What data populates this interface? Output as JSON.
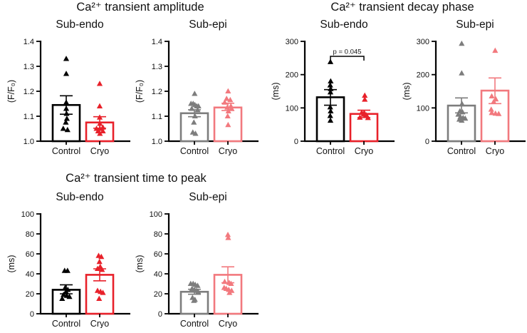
{
  "figure": {
    "groups": [
      {
        "title": "Ca²⁺ transient amplitude"
      },
      {
        "title": "Ca²⁺ transient decay phase"
      },
      {
        "title": "Ca²⁺ transient time to peak"
      }
    ]
  },
  "colors": {
    "control_sub_endo": "#000000",
    "cryo_sub_endo": "#e8212a",
    "control_sub_epi": "#7d7d7d",
    "cryo_sub_epi": "#f2797e",
    "axis": "#000000",
    "background": "#ffffff"
  },
  "chart_data": [
    {
      "id": "amplitude-sub-endo",
      "type": "bar",
      "group": "Ca²⁺ transient amplitude",
      "subtitle": "Sub-endo",
      "ylabel": "(F/F₀)",
      "ylim": [
        1.0,
        1.4
      ],
      "yticks": [
        {
          "value": 1.0,
          "label": "1.0"
        },
        {
          "value": 1.1,
          "label": "1.1"
        },
        {
          "value": 1.2,
          "label": "1.2"
        },
        {
          "value": 1.3,
          "label": "1.3"
        },
        {
          "value": 1.4,
          "label": "1.4"
        }
      ],
      "categories": [
        "Control",
        "Cryo"
      ],
      "series": [
        {
          "name": "Control",
          "color": "#000000",
          "mean": 1.145,
          "err_low": 1.108,
          "err_high": 1.182,
          "points": [
            1.33,
            1.27,
            1.155,
            1.13,
            1.11,
            1.09,
            1.075,
            1.05,
            1.045
          ],
          "jitter": [
            0,
            0,
            0,
            0,
            0.03,
            0.06,
            -0.04,
            -0.28,
            0.12
          ]
        },
        {
          "name": "Cryo",
          "color": "#e8212a",
          "mean": 1.075,
          "err_low": 1.052,
          "err_high": 1.098,
          "points": [
            1.23,
            1.14,
            1.095,
            1.07,
            1.055,
            1.05,
            1.05,
            1.04,
            1.04,
            1.03
          ],
          "jitter": [
            0,
            0,
            0,
            0.02,
            0.3,
            -0.3,
            0.02,
            -0.15,
            0.3,
            0.02
          ]
        }
      ]
    },
    {
      "id": "amplitude-sub-epi",
      "type": "bar",
      "group": "Ca²⁺ transient amplitude",
      "subtitle": "Sub-epi",
      "ylabel": "(F/F₀)",
      "ylim": [
        1.0,
        1.4
      ],
      "yticks": [
        {
          "value": 1.0,
          "label": "1.0"
        },
        {
          "value": 1.1,
          "label": "1.1"
        },
        {
          "value": 1.2,
          "label": "1.2"
        },
        {
          "value": 1.3,
          "label": "1.3"
        },
        {
          "value": 1.4,
          "label": "1.4"
        }
      ],
      "categories": [
        "Control",
        "Cryo"
      ],
      "series": [
        {
          "name": "Control",
          "color": "#7d7d7d",
          "mean": 1.112,
          "err_low": 1.098,
          "err_high": 1.126,
          "points": [
            1.19,
            1.15,
            1.15,
            1.145,
            1.14,
            1.14,
            1.13,
            1.125,
            1.1,
            1.075,
            1.035,
            1.03
          ],
          "jitter": [
            0.02,
            -0.32,
            -0.12,
            0.05,
            0.22,
            0.38,
            -0.25,
            0.3,
            0.05,
            -0.05,
            -0.15,
            0.1
          ]
        },
        {
          "name": "Cryo",
          "color": "#f2797e",
          "mean": 1.135,
          "err_low": 1.123,
          "err_high": 1.152,
          "points": [
            1.2,
            1.17,
            1.165,
            1.155,
            1.14,
            1.135,
            1.13,
            1.12,
            1.1,
            1.065
          ],
          "jitter": [
            0.02,
            -0.12,
            0.22,
            -0.3,
            0.28,
            -0.05,
            0.35,
            0.05,
            -0.02,
            0.02
          ]
        }
      ]
    },
    {
      "id": "decay-sub-endo",
      "type": "bar",
      "group": "Ca²⁺ transient decay phase",
      "subtitle": "Sub-endo",
      "ylabel": "(ms)",
      "ylim": [
        0,
        300
      ],
      "yticks": [
        {
          "value": 0,
          "label": "0"
        },
        {
          "value": 100,
          "label": "100"
        },
        {
          "value": 200,
          "label": "200"
        },
        {
          "value": 300,
          "label": "300"
        }
      ],
      "categories": [
        "Control",
        "Cryo"
      ],
      "significance": {
        "label": "p = 0.045",
        "y": 255
      },
      "series": [
        {
          "name": "Control",
          "color": "#000000",
          "mean": 132,
          "err_low": 108,
          "err_high": 155,
          "points": [
            238,
            180,
            168,
            157,
            147,
            102,
            90,
            76,
            62
          ],
          "jitter": [
            0,
            0.02,
            -0.02,
            0.02,
            0,
            -0.02,
            0.02,
            -0.02,
            0
          ]
        },
        {
          "name": "Cryo",
          "color": "#e8212a",
          "mean": 82,
          "err_low": 71,
          "err_high": 93,
          "points": [
            137,
            125,
            86,
            84,
            80,
            78,
            71,
            70
          ],
          "jitter": [
            0.08,
            0.08,
            -0.2,
            0.05,
            -0.05,
            0.22,
            -0.38,
            0.38
          ]
        }
      ]
    },
    {
      "id": "decay-sub-epi",
      "type": "bar",
      "group": "Ca²⁺ transient decay phase",
      "subtitle": "Sub-epi",
      "ylabel": "(ms)",
      "ylim": [
        0,
        300
      ],
      "yticks": [
        {
          "value": 0,
          "label": "0"
        },
        {
          "value": 100,
          "label": "100"
        },
        {
          "value": 200,
          "label": "200"
        },
        {
          "value": 300,
          "label": "300"
        }
      ],
      "categories": [
        "Control",
        "Cryo"
      ],
      "series": [
        {
          "name": "Control",
          "color": "#7d7d7d",
          "mean": 107,
          "err_low": 85,
          "err_high": 130,
          "points": [
            293,
            204,
            112,
            90,
            87,
            80,
            73,
            70,
            68,
            65,
            62
          ],
          "jitter": [
            0.02,
            0.02,
            0.05,
            -0.15,
            0.1,
            -0.3,
            -0.1,
            0.15,
            0.35,
            -0.2,
            0.02
          ]
        },
        {
          "name": "Cryo",
          "color": "#f2797e",
          "mean": 152,
          "err_low": 113,
          "err_high": 190,
          "points": [
            272,
            135,
            126,
            118,
            95,
            85,
            83,
            82
          ],
          "jitter": [
            0.02,
            -0.3,
            0.08,
            -0.12,
            -0.35,
            -0.3,
            0.05,
            0.35
          ]
        }
      ]
    },
    {
      "id": "time-to-peak-sub-endo",
      "type": "bar",
      "group": "Ca²⁺ transient time to peak",
      "subtitle": "Sub-endo",
      "ylabel": "(ms)",
      "ylim": [
        0,
        100
      ],
      "yticks": [
        {
          "value": 0,
          "label": "0"
        },
        {
          "value": 20,
          "label": "20"
        },
        {
          "value": 40,
          "label": "40"
        },
        {
          "value": 60,
          "label": "60"
        },
        {
          "value": 80,
          "label": "80"
        },
        {
          "value": 100,
          "label": "100"
        }
      ],
      "categories": [
        "Control",
        "Cryo"
      ],
      "series": [
        {
          "name": "Control",
          "color": "#000000",
          "mean": 24,
          "err_low": 20,
          "err_high": 29,
          "points": [
            43,
            43,
            26,
            24,
            22,
            19,
            18,
            17,
            15
          ],
          "jitter": [
            -0.15,
            0.12,
            -0.1,
            0.15,
            -0.02,
            -0.25,
            0.05,
            0.3,
            -0.38
          ]
        },
        {
          "name": "Cryo",
          "color": "#e8212a",
          "mean": 39,
          "err_low": 33,
          "err_high": 45,
          "points": [
            58,
            57,
            52,
            47,
            45,
            44,
            23,
            22,
            21,
            15
          ],
          "jitter": [
            -0.1,
            0.15,
            -0.02,
            0.05,
            -0.2,
            0.22,
            -0.2,
            0.08,
            0.3,
            -0.05
          ]
        }
      ]
    },
    {
      "id": "time-to-peak-sub-epi",
      "type": "bar",
      "group": "Ca²⁺ transient time to peak",
      "subtitle": "Sub-epi",
      "ylabel": "(ms)",
      "ylim": [
        0,
        100
      ],
      "yticks": [
        {
          "value": 0,
          "label": "0"
        },
        {
          "value": 20,
          "label": "20"
        },
        {
          "value": 40,
          "label": "40"
        },
        {
          "value": 60,
          "label": "60"
        },
        {
          "value": 80,
          "label": "80"
        },
        {
          "value": 100,
          "label": "100"
        }
      ],
      "categories": [
        "Control",
        "Cryo"
      ],
      "series": [
        {
          "name": "Control",
          "color": "#7d7d7d",
          "mean": 22,
          "err_low": 19.5,
          "err_high": 24.5,
          "points": [
            30,
            30,
            29,
            28,
            25,
            24,
            23,
            22,
            16,
            14,
            13
          ],
          "jitter": [
            -0.35,
            -0.12,
            0.08,
            0.3,
            -0.22,
            0,
            0.2,
            0.35,
            -0.18,
            0.05,
            -0.05
          ]
        },
        {
          "name": "Cryo",
          "color": "#f2797e",
          "mean": 39,
          "err_low": 31,
          "err_high": 47,
          "points": [
            79,
            76,
            32,
            31,
            30,
            26,
            25,
            24,
            23,
            21
          ],
          "jitter": [
            0,
            0.03,
            -0.3,
            0.12,
            0.3,
            -0.35,
            -0.15,
            0.08,
            0.35,
            0.15
          ]
        }
      ]
    }
  ]
}
